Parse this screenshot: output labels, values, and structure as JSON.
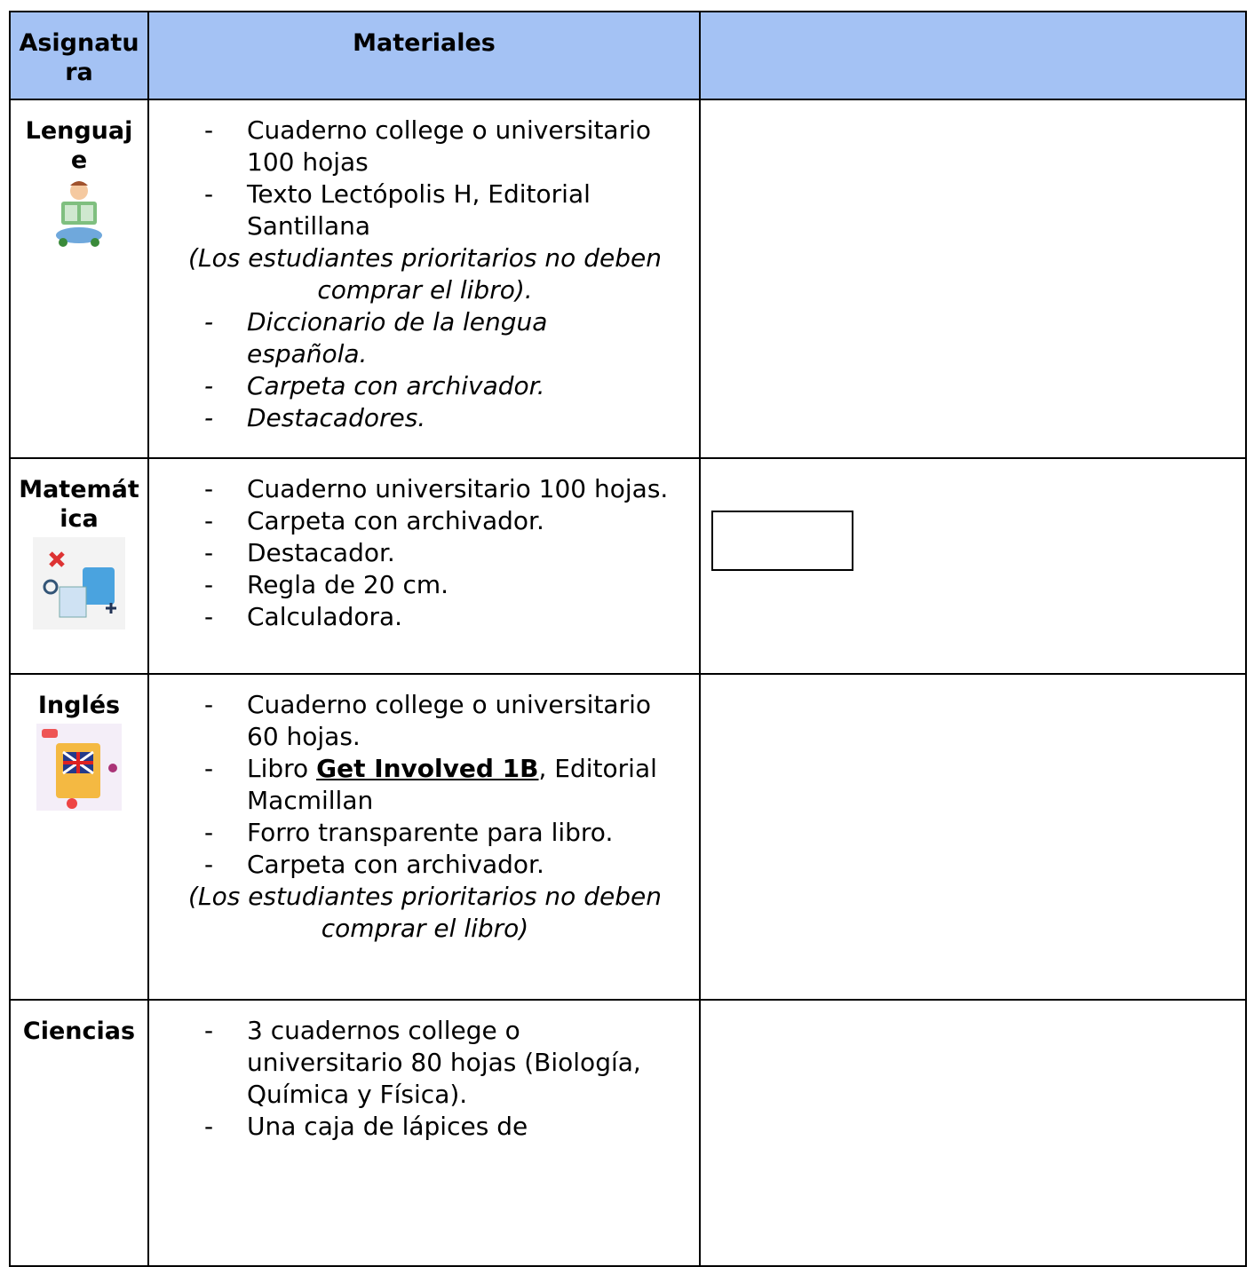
{
  "table": {
    "header": [
      "Asignatura",
      "Materiales",
      ""
    ],
    "rows": [
      {
        "subject": "Lenguaje",
        "items": [
          {
            "text": "Cuaderno college o universitario 100 hojas",
            "kind": "item",
            "italic": false
          },
          {
            "text": "Texto Lectópolis H, Editorial Santillana",
            "kind": "item",
            "italic": false
          },
          {
            "text": "(Los estudiantes prioritarios no deben comprar el libro).",
            "kind": "note",
            "italic": true
          },
          {
            "text": "Diccionario de la lengua española.",
            "kind": "item",
            "italic": true
          },
          {
            "text": "Carpeta con archivador.",
            "kind": "item",
            "italic": true
          },
          {
            "text": "Destacadores.",
            "kind": "item",
            "italic": true
          }
        ]
      },
      {
        "subject": "Matemática",
        "items": [
          {
            "text": "Cuaderno universitario 100 hojas.",
            "kind": "item",
            "italic": false
          },
          {
            "text": "Carpeta con archivador.",
            "kind": "item",
            "italic": false
          },
          {
            "text": "Destacador.",
            "kind": "item",
            "italic": false
          },
          {
            "text": "Regla de 20 cm.",
            "kind": "item",
            "italic": false
          },
          {
            "text": "Calculadora.",
            "kind": "item",
            "italic": false
          }
        ]
      },
      {
        "subject": "Inglés",
        "items": [
          {
            "text": "Cuaderno college o universitario 60 hojas.",
            "kind": "item",
            "italic": false
          },
          {
            "parts": [
              "Libro ",
              "Get Involved 1B",
              ", Editorial Macmillan"
            ],
            "kind": "item",
            "italic": false
          },
          {
            "text": "Forro transparente para libro.",
            "kind": "item",
            "italic": false
          },
          {
            "text": "Carpeta con archivador.",
            "kind": "item",
            "italic": false
          },
          {
            "text": "(Los estudiantes prioritarios no deben comprar el libro)",
            "kind": "note",
            "italic": true
          }
        ]
      },
      {
        "subject": "Ciencias",
        "items": [
          {
            "text": "3 cuadernos college o universitario 80 hojas (Biología, Química y Física).",
            "kind": "item",
            "italic": false
          },
          {
            "text": "Una caja de lápices de",
            "kind": "item",
            "italic": false
          }
        ]
      }
    ]
  }
}
